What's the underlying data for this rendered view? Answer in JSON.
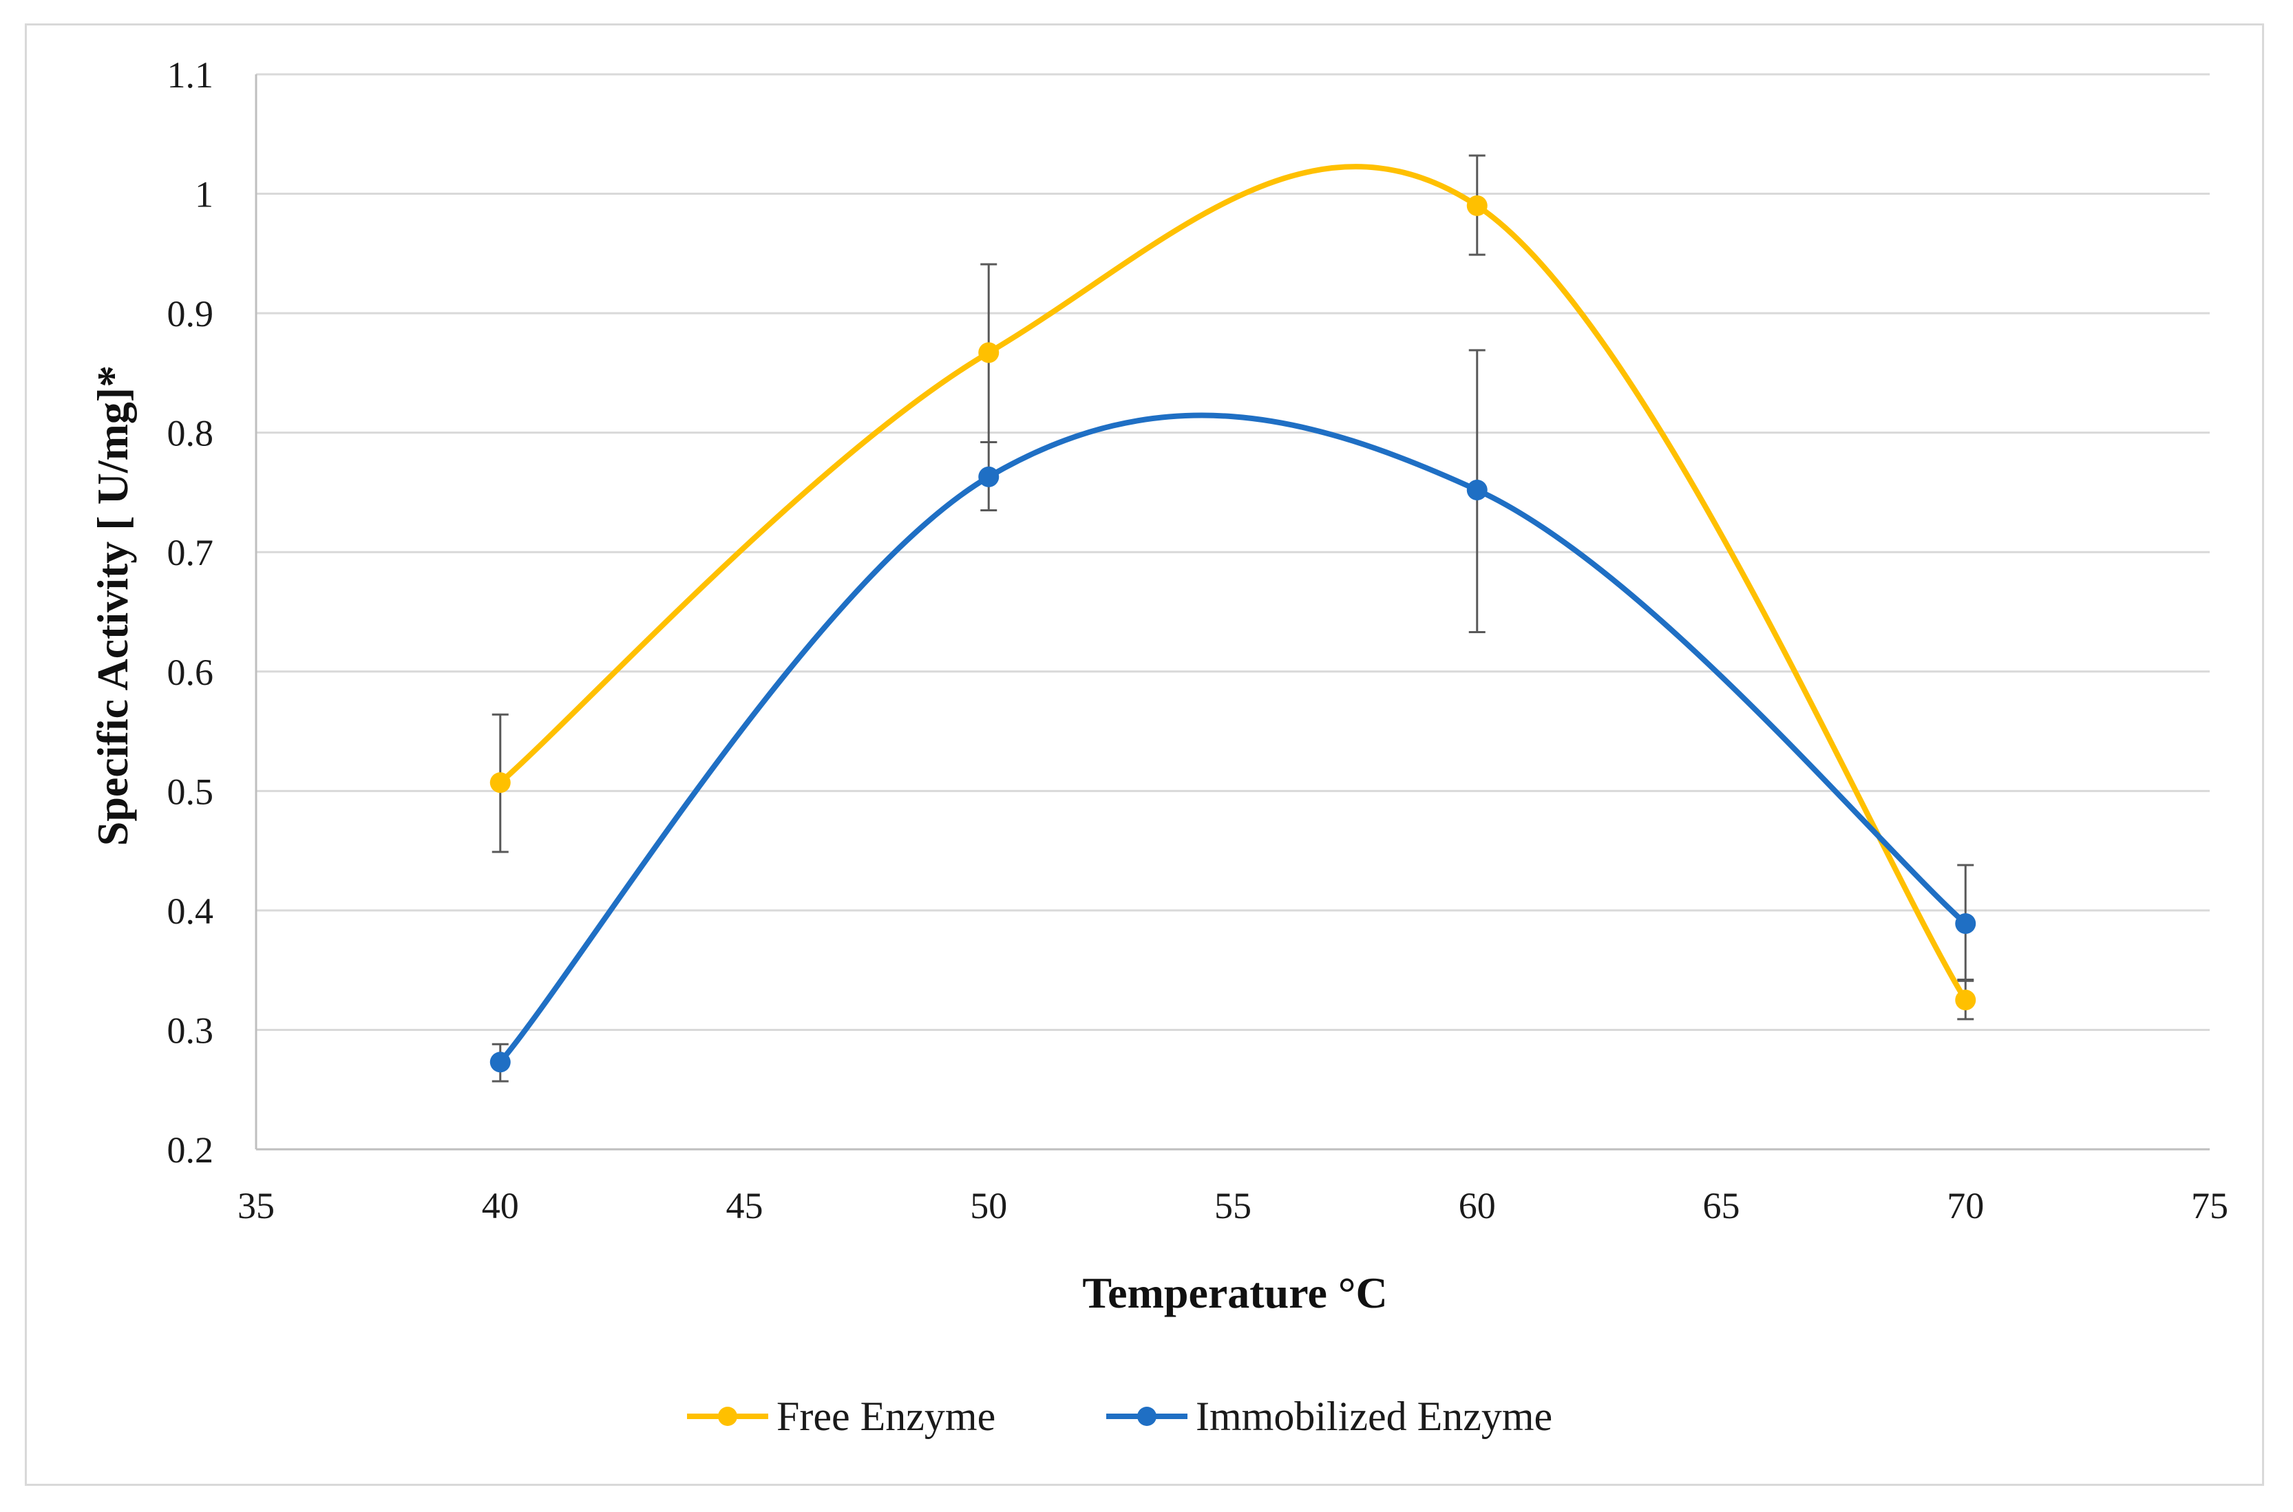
{
  "chart_data": {
    "type": "line",
    "title": "",
    "xlabel": "Temperature °C",
    "ylabel": "Specific Activity  [ U/mg]*",
    "xlim": [
      35,
      75
    ],
    "ylim": [
      0.2,
      1.1
    ],
    "x_ticks": [
      35,
      40,
      45,
      50,
      55,
      60,
      65,
      70,
      75
    ],
    "y_ticks": [
      0.2,
      0.3,
      0.4,
      0.5,
      0.6,
      0.7,
      0.8,
      0.9,
      1,
      1.1
    ],
    "y_tick_labels": [
      "0.2",
      "0.3",
      "0.4",
      "0.5",
      "0.6",
      "0.7",
      "0.8",
      "0.9",
      "1",
      "1.1"
    ],
    "grid": true,
    "smooth": true,
    "legend_position": "bottom",
    "series": [
      {
        "name": "Free Enzyme",
        "color": "#FFC000",
        "x": [
          40,
          50,
          60,
          70
        ],
        "y": [
          0.507,
          0.867,
          0.99,
          0.325
        ],
        "error_low": [
          0.449,
          0.792,
          0.949,
          0.309
        ],
        "error_high": [
          0.564,
          0.941,
          1.032,
          0.341
        ]
      },
      {
        "name": "Immobilized Enzyme",
        "color": "#1F6FC4",
        "x": [
          40,
          50,
          60,
          70
        ],
        "y": [
          0.273,
          0.763,
          0.752,
          0.389
        ],
        "error_low": [
          0.257,
          0.735,
          0.633,
          0.342
        ],
        "error_high": [
          0.288,
          0.792,
          0.869,
          0.438
        ]
      }
    ],
    "error_bar_color": "#595959"
  }
}
